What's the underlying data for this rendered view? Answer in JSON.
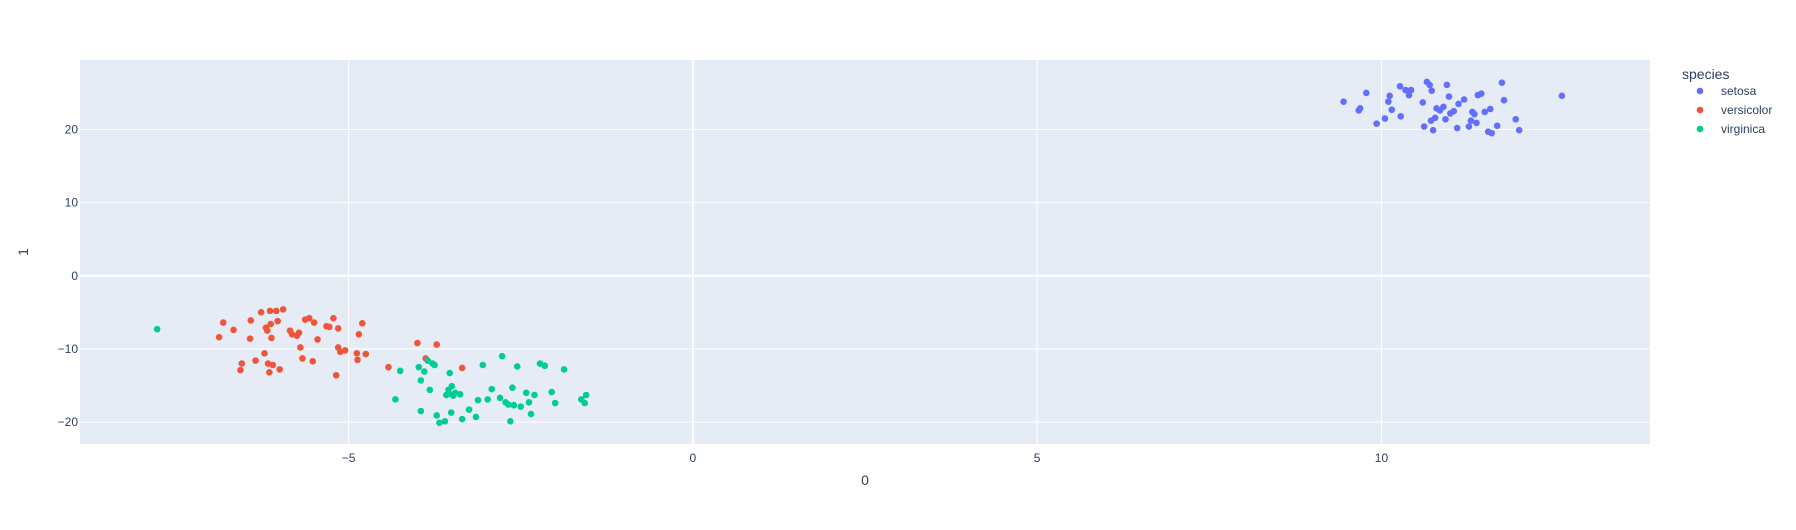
{
  "chart_data": {
    "type": "scatter",
    "xlabel": "0",
    "ylabel": "1",
    "xlim": [
      -8.9,
      13.9
    ],
    "ylim": [
      -23.0,
      29.5
    ],
    "xticks": [
      -5,
      0,
      5,
      10
    ],
    "xtick_labels": [
      "−5",
      "0",
      "5",
      "10"
    ],
    "yticks": [
      -20,
      -10,
      0,
      10,
      20
    ],
    "ytick_labels": [
      "−20",
      "−10",
      "0",
      "10",
      "20"
    ],
    "grid": true,
    "legend": {
      "title": "species",
      "placement": "top-right-outside"
    },
    "series": [
      {
        "name": "setosa",
        "color": "#636efa",
        "points": [
          [
            9.45,
            23.8
          ],
          [
            9.67,
            22.6
          ],
          [
            9.69,
            22.9
          ],
          [
            9.78,
            25.0
          ],
          [
            9.93,
            20.8
          ],
          [
            10.05,
            21.5
          ],
          [
            10.1,
            23.8
          ],
          [
            10.12,
            24.6
          ],
          [
            10.15,
            22.7
          ],
          [
            10.27,
            25.9
          ],
          [
            10.28,
            21.8
          ],
          [
            10.35,
            25.4
          ],
          [
            10.4,
            24.7
          ],
          [
            10.43,
            25.4
          ],
          [
            10.62,
            20.4
          ],
          [
            10.66,
            26.5
          ],
          [
            10.7,
            26.1
          ],
          [
            10.72,
            21.2
          ],
          [
            10.73,
            25.3
          ],
          [
            10.75,
            19.9
          ],
          [
            10.78,
            21.6
          ],
          [
            10.8,
            22.9
          ],
          [
            10.85,
            22.6
          ],
          [
            10.93,
            21.4
          ],
          [
            10.95,
            26.1
          ],
          [
            10.98,
            24.5
          ],
          [
            11.0,
            22.2
          ],
          [
            11.05,
            22.5
          ],
          [
            11.12,
            23.5
          ],
          [
            11.2,
            24.1
          ],
          [
            11.27,
            20.4
          ],
          [
            11.3,
            21.2
          ],
          [
            11.32,
            22.4
          ],
          [
            11.38,
            20.9
          ],
          [
            11.4,
            24.7
          ],
          [
            11.45,
            24.9
          ],
          [
            11.5,
            22.4
          ],
          [
            11.55,
            19.7
          ],
          [
            11.58,
            22.8
          ],
          [
            11.6,
            19.5
          ],
          [
            11.68,
            20.5
          ],
          [
            11.75,
            26.4
          ],
          [
            11.78,
            24.0
          ],
          [
            11.95,
            21.4
          ],
          [
            12.0,
            19.9
          ],
          [
            12.62,
            24.6
          ],
          [
            11.35,
            22.1
          ],
          [
            10.6,
            23.7
          ],
          [
            11.1,
            20.2
          ],
          [
            10.9,
            23.1
          ]
        ]
      },
      {
        "name": "versicolor",
        "color": "#ef553b",
        "points": [
          [
            -6.88,
            -8.4
          ],
          [
            -6.82,
            -6.4
          ],
          [
            -6.67,
            -7.4
          ],
          [
            -6.57,
            -12.9
          ],
          [
            -6.55,
            -12.0
          ],
          [
            -6.43,
            -8.6
          ],
          [
            -6.42,
            -6.1
          ],
          [
            -6.35,
            -11.6
          ],
          [
            -6.27,
            -5.0
          ],
          [
            -6.22,
            -10.6
          ],
          [
            -6.2,
            -7.1
          ],
          [
            -6.18,
            -7.5
          ],
          [
            -6.17,
            -12.0
          ],
          [
            -6.15,
            -13.2
          ],
          [
            -6.14,
            -4.8
          ],
          [
            -6.13,
            -6.6
          ],
          [
            -6.12,
            -8.5
          ],
          [
            -6.1,
            -12.2
          ],
          [
            -6.05,
            -4.8
          ],
          [
            -6.03,
            -6.2
          ],
          [
            -6.0,
            -12.8
          ],
          [
            -5.95,
            -4.6
          ],
          [
            -5.85,
            -7.5
          ],
          [
            -5.82,
            -8.0
          ],
          [
            -5.75,
            -8.2
          ],
          [
            -5.72,
            -7.8
          ],
          [
            -5.7,
            -9.8
          ],
          [
            -5.67,
            -11.3
          ],
          [
            -5.63,
            -6.0
          ],
          [
            -5.57,
            -5.8
          ],
          [
            -5.52,
            -11.7
          ],
          [
            -5.5,
            -6.4
          ],
          [
            -5.45,
            -8.7
          ],
          [
            -5.32,
            -6.9
          ],
          [
            -5.28,
            -7.0
          ],
          [
            -5.22,
            -5.8
          ],
          [
            -5.18,
            -13.6
          ],
          [
            -5.15,
            -9.8
          ],
          [
            -5.15,
            -7.2
          ],
          [
            -5.12,
            -10.4
          ],
          [
            -5.05,
            -10.2
          ],
          [
            -4.88,
            -10.6
          ],
          [
            -4.87,
            -11.5
          ],
          [
            -4.85,
            -8.0
          ],
          [
            -4.8,
            -6.5
          ],
          [
            -4.75,
            -10.7
          ],
          [
            -4.42,
            -12.5
          ],
          [
            -4.0,
            -9.2
          ],
          [
            -3.88,
            -11.3
          ],
          [
            -3.72,
            -9.4
          ],
          [
            -3.35,
            -12.6
          ]
        ]
      },
      {
        "name": "virginica",
        "color": "#00cc96",
        "points": [
          [
            -7.78,
            -7.3
          ],
          [
            -4.32,
            -16.9
          ],
          [
            -4.25,
            -13.0
          ],
          [
            -3.98,
            -12.5
          ],
          [
            -3.95,
            -14.3
          ],
          [
            -3.95,
            -18.5
          ],
          [
            -3.9,
            -13.1
          ],
          [
            -3.85,
            -11.6
          ],
          [
            -3.82,
            -15.6
          ],
          [
            -3.78,
            -12.0
          ],
          [
            -3.75,
            -12.2
          ],
          [
            -3.72,
            -19.1
          ],
          [
            -3.68,
            -20.1
          ],
          [
            -3.6,
            -19.9
          ],
          [
            -3.58,
            -16.3
          ],
          [
            -3.55,
            -15.6
          ],
          [
            -3.54,
            -16.1
          ],
          [
            -3.53,
            -13.3
          ],
          [
            -3.51,
            -18.7
          ],
          [
            -3.5,
            -15.1
          ],
          [
            -3.48,
            -16.4
          ],
          [
            -3.45,
            -16.0
          ],
          [
            -3.38,
            -16.2
          ],
          [
            -3.35,
            -19.6
          ],
          [
            -3.25,
            -18.3
          ],
          [
            -3.15,
            -19.3
          ],
          [
            -3.12,
            -17.0
          ],
          [
            -3.05,
            -12.2
          ],
          [
            -2.98,
            -16.9
          ],
          [
            -2.92,
            -15.5
          ],
          [
            -2.8,
            -16.7
          ],
          [
            -2.77,
            -11.0
          ],
          [
            -2.72,
            -17.3
          ],
          [
            -2.68,
            -17.6
          ],
          [
            -2.65,
            -19.9
          ],
          [
            -2.6,
            -17.7
          ],
          [
            -2.62,
            -15.3
          ],
          [
            -2.55,
            -12.4
          ],
          [
            -2.5,
            -17.9
          ],
          [
            -2.42,
            -16.0
          ],
          [
            -2.38,
            -17.3
          ],
          [
            -2.35,
            -18.9
          ],
          [
            -2.3,
            -16.3
          ],
          [
            -2.22,
            -12.0
          ],
          [
            -2.15,
            -12.3
          ],
          [
            -2.05,
            -15.9
          ],
          [
            -2.0,
            -17.4
          ],
          [
            -1.87,
            -12.8
          ],
          [
            -1.62,
            -16.9
          ],
          [
            -1.57,
            -17.4
          ],
          [
            -1.55,
            -16.3
          ]
        ]
      }
    ]
  }
}
